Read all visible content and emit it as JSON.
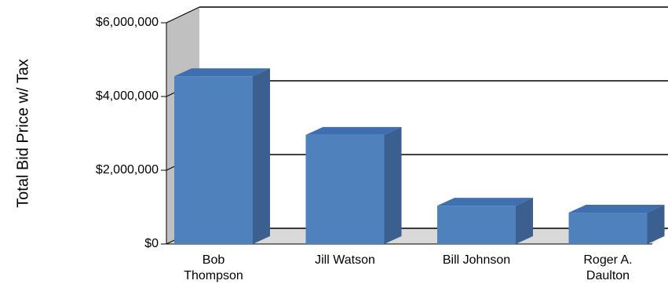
{
  "chart_data": {
    "type": "bar3d",
    "y_axis_label": "Total Bid Price w/ Tax",
    "categories": [
      "Bob\nThompson",
      "Jill Watson",
      "Bill Johnson",
      "Roger A.\nDaulton"
    ],
    "values": [
      4550000,
      2960000,
      1040000,
      850000
    ],
    "color": "#4f81bd",
    "ylim": [
      0,
      6000000
    ],
    "yticks": [
      {
        "value": 0,
        "label": "$0"
      },
      {
        "value": 2000000,
        "label": "$2,000,000"
      },
      {
        "value": 4000000,
        "label": "$4,000,000"
      },
      {
        "value": 6000000,
        "label": "$6,000,000"
      }
    ],
    "grid": true
  }
}
